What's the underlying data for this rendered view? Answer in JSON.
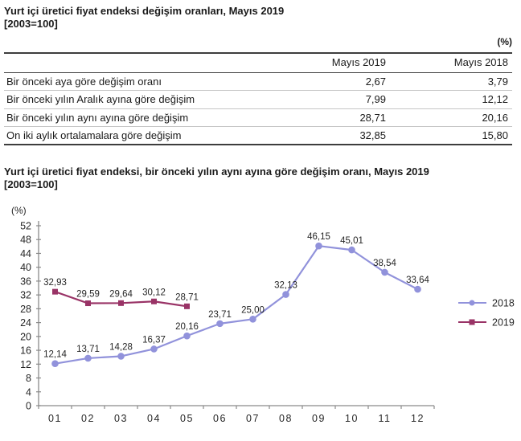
{
  "table_section": {
    "title": "Yurt içi üretici fiyat endeksi değişim oranları, Mayıs 2019",
    "subtitle": "[2003=100]",
    "unit_label": "(%)",
    "columns": [
      "Mayıs  2019",
      "Mayıs  2018"
    ],
    "rows": [
      {
        "label": "Bir önceki aya göre değişim oranı",
        "v2019": "2,67",
        "v2018": "3,79"
      },
      {
        "label": "Bir önceki yılın Aralık ayına göre değişim",
        "v2019": "7,99",
        "v2018": "12,12"
      },
      {
        "label": "Bir önceki yılın aynı ayına göre değişim",
        "v2019": "28,71",
        "v2018": "20,16"
      },
      {
        "label": "On iki aylık ortalamalara göre değişim",
        "v2019": "32,85",
        "v2018": "15,80"
      }
    ]
  },
  "chart_section": {
    "title": "Yurt içi üretici fiyat endeksi, bir önceki yılın aynı ayına göre değişim oranı, Mayıs 2019",
    "subtitle": "[2003=100]"
  },
  "chart_data": {
    "type": "line",
    "title": "Yurt içi üretici fiyat endeksi, bir önceki yılın aynı ayına göre değişim oranı, Mayıs 2019 [2003=100]",
    "ylabel": "(%)",
    "xlabel": "",
    "categories": [
      "01",
      "02",
      "03",
      "04",
      "05",
      "06",
      "07",
      "08",
      "09",
      "10",
      "11",
      "12"
    ],
    "ylim": [
      0,
      52
    ],
    "ytick_step": 4,
    "grid": false,
    "legend_position": "right",
    "series": [
      {
        "name": "2018",
        "color": "#9192db",
        "marker": "circle",
        "values": [
          12.14,
          13.71,
          14.28,
          16.37,
          20.16,
          23.71,
          25.0,
          32.13,
          46.15,
          45.01,
          38.54,
          33.64
        ],
        "labels": [
          "12,14",
          "13,71",
          "14,28",
          "16,37",
          "20,16",
          "23,71",
          "25,00",
          "32,13",
          "46,15",
          "45,01",
          "38,54",
          "33,64"
        ]
      },
      {
        "name": "2019",
        "color": "#993366",
        "marker": "square",
        "values": [
          32.93,
          29.59,
          29.64,
          30.12,
          28.71
        ],
        "labels": [
          "32,93",
          "29,59",
          "29,64",
          "30,12",
          "28,71"
        ]
      }
    ],
    "colors": {
      "axis": "#8a8a8a",
      "text": "#262626"
    }
  }
}
